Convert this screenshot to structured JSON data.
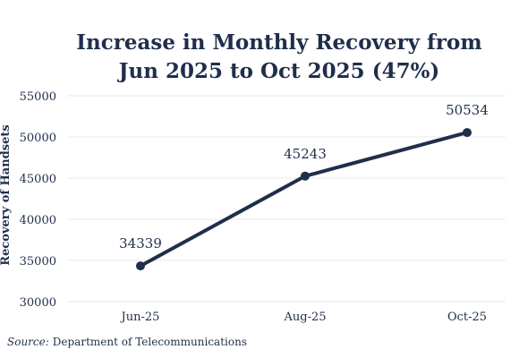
{
  "chart_data": {
    "type": "line",
    "title_line1": "Increase in Monthly Recovery from",
    "title_line2": "Jun 2025 to Oct 2025 (47%)",
    "xlabel": "",
    "ylabel": "Recovery of Handsets",
    "categories": [
      "Jun-25",
      "Aug-25",
      "Oct-25"
    ],
    "series": [
      {
        "values": [
          34339,
          45243,
          50534
        ]
      }
    ],
    "data_labels": [
      "34339",
      "45243",
      "50534"
    ],
    "ylim": [
      30000,
      55000
    ],
    "yticks": [
      30000,
      35000,
      40000,
      45000,
      50000,
      55000
    ],
    "ytick_labels": [
      "30000",
      "35000",
      "40000",
      "45000",
      "50000",
      "55000"
    ],
    "grid": true,
    "legend": "none",
    "line_color": "#1f2e4b"
  },
  "source": {
    "label": "Source:",
    "text": "Department of Telecommunications"
  }
}
